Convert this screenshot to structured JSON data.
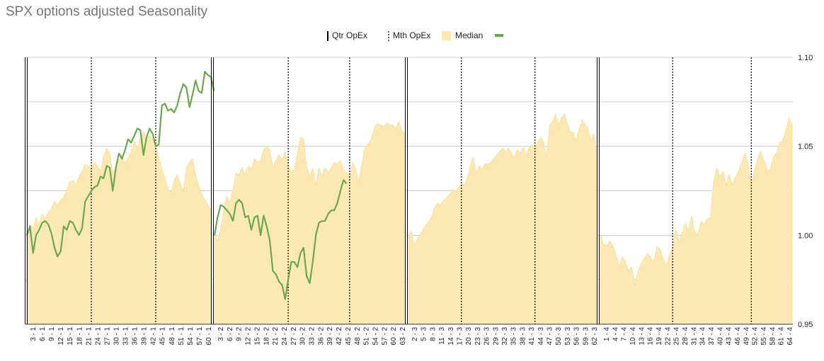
{
  "chart_data": {
    "type": "area",
    "title": "SPX options adjusted Seasonality",
    "legend": [
      {
        "label": "Qtr OpEx",
        "marker": "solid vertical line",
        "color": "#000000"
      },
      {
        "label": "Mth OpEx",
        "marker": "dotted vertical line",
        "color": "#000000"
      },
      {
        "label": "Median",
        "marker": "filled area",
        "color": "#fce8b2"
      },
      {
        "label": "",
        "marker": "line",
        "color": "#6aa84f"
      }
    ],
    "legend_position": "top",
    "colors": {
      "median_fill": "#fce8b2",
      "median_edge": "#fbdc8e",
      "line": "#6aa84f",
      "grid": "#cccccc",
      "title": "#757575"
    },
    "ylim": [
      0.95,
      1.1
    ],
    "y_ticks": [
      "0.95",
      "1.00",
      "1.05",
      "1.10"
    ],
    "y_axis_side": "right",
    "grid": true,
    "panels": [
      {
        "quarter": 1,
        "x_labels": [
          "3 - 1",
          "6 - 1",
          "9 - 1",
          "12 - 1",
          "15 - 1",
          "18 - 1",
          "21 - 1",
          "24 - 1",
          "27 - 1",
          "30 - 1",
          "33 - 1",
          "36 - 1",
          "39 - 1",
          "42 - 1",
          "45 - 1",
          "48 - 1",
          "51 - 1",
          "54 - 1",
          "57 - 1",
          "60 - 1"
        ],
        "mth_opex_after_day": [
          21,
          42
        ],
        "median": [
          1.0,
          1.006,
          1.004,
          1.01,
          1.006,
          1.012,
          1.009,
          1.013,
          1.015,
          1.019,
          1.017,
          1.02,
          1.021,
          1.026,
          1.03,
          1.031,
          1.028,
          1.033,
          1.036,
          1.04,
          1.039,
          1.037,
          1.041,
          1.039,
          1.036,
          1.044,
          1.049,
          1.046,
          1.034,
          1.039,
          1.042,
          1.045,
          1.04,
          1.044,
          1.047,
          1.053,
          1.049,
          1.055,
          1.058,
          1.053,
          1.056,
          1.054,
          1.05,
          1.044,
          1.037,
          1.032,
          1.026,
          1.024,
          1.031,
          1.034,
          1.029,
          1.025,
          1.038,
          1.041,
          1.043,
          1.034,
          1.028,
          1.023,
          1.02,
          1.017,
          1.014
        ],
        "line": [
          1.0,
          1.005,
          0.99,
          1.0,
          1.003,
          1.007,
          1.008,
          1.006,
          1.001,
          0.993,
          0.988,
          0.991,
          1.005,
          1.003,
          1.008,
          1.007,
          1.003,
          1.0,
          1.004,
          1.019,
          1.022,
          1.025,
          1.027,
          1.028,
          1.033,
          1.032,
          1.039,
          1.038,
          1.025,
          1.038,
          1.046,
          1.043,
          1.048,
          1.054,
          1.052,
          1.056,
          1.06,
          1.059,
          1.045,
          1.055,
          1.06,
          1.057,
          1.05,
          1.051,
          1.073,
          1.074,
          1.07,
          1.071,
          1.069,
          1.073,
          1.08,
          1.085,
          1.083,
          1.072,
          1.079,
          1.087,
          1.081,
          1.08,
          1.092,
          1.09,
          1.089,
          1.081
        ]
      },
      {
        "quarter": 2,
        "x_labels": [
          "3 - 2",
          "6 - 2",
          "9 - 2",
          "12 - 2",
          "15 - 2",
          "18 - 2",
          "21 - 2",
          "24 - 2",
          "27 - 2",
          "30 - 2",
          "33 - 2",
          "36 - 2",
          "39 - 2",
          "42 - 2",
          "45 - 2",
          "48 - 2",
          "51 - 2",
          "54 - 2",
          "57 - 2",
          "60 - 2",
          "63 - 2"
        ],
        "mth_opex_after_day": [
          24,
          44
        ],
        "median": [
          1.0,
          0.997,
          1.004,
          1.014,
          1.022,
          1.018,
          1.026,
          1.035,
          1.034,
          1.038,
          1.034,
          1.039,
          1.037,
          1.043,
          1.041,
          1.042,
          1.048,
          1.05,
          1.048,
          1.038,
          1.042,
          1.045,
          1.042,
          1.047,
          1.04,
          1.035,
          1.037,
          1.046,
          1.055,
          1.054,
          1.038,
          1.033,
          1.038,
          1.028,
          1.038,
          1.033,
          1.038,
          1.035,
          1.038,
          1.041,
          1.04,
          1.042,
          1.037,
          1.035,
          1.033,
          1.041,
          1.037,
          1.03,
          1.04,
          1.05,
          1.051,
          1.054,
          1.06,
          1.063,
          1.062,
          1.061,
          1.063,
          1.062,
          1.062,
          1.06,
          1.064,
          1.059,
          1.057
        ],
        "line": [
          1.0,
          1.01,
          1.017,
          1.016,
          1.014,
          1.012,
          1.008,
          1.018,
          1.02,
          1.018,
          1.01,
          1.011,
          1.003,
          1.01,
          1.011,
          1.0,
          1.011,
          1.005,
          0.997,
          0.98,
          0.978,
          0.974,
          0.972,
          0.964,
          0.975,
          0.985,
          0.985,
          0.982,
          0.99,
          0.993,
          0.977,
          0.973,
          0.985,
          1.0,
          1.007,
          1.008,
          1.008,
          1.012,
          1.014,
          1.014,
          1.018,
          1.025,
          1.031,
          1.029
        ]
      },
      {
        "quarter": 3,
        "x_labels": [
          "2 - 3",
          "5 - 3",
          "8 - 3",
          "11 - 3",
          "14 - 3",
          "17 - 3",
          "20 - 3",
          "23 - 3",
          "26 - 3",
          "29 - 3",
          "32 - 3",
          "35 - 3",
          "38 - 3",
          "41 - 3",
          "44 - 3",
          "47 - 3",
          "50 - 3",
          "53 - 3",
          "56 - 3",
          "59 - 3",
          "62 - 3"
        ],
        "mth_opex_after_day": [
          18,
          43
        ],
        "median": [
          1.0,
          1.002,
          0.994,
          0.998,
          1.0,
          1.004,
          1.006,
          1.008,
          1.011,
          1.016,
          1.018,
          1.017,
          1.02,
          1.021,
          1.023,
          1.026,
          1.024,
          1.027,
          1.029,
          1.028,
          1.032,
          1.039,
          1.044,
          1.035,
          1.039,
          1.037,
          1.04,
          1.04,
          1.041,
          1.043,
          1.045,
          1.047,
          1.049,
          1.047,
          1.049,
          1.046,
          1.044,
          1.048,
          1.046,
          1.05,
          1.045,
          1.049,
          1.051,
          1.049,
          1.053,
          1.055,
          1.052,
          1.044,
          1.062,
          1.064,
          1.068,
          1.062,
          1.066,
          1.068,
          1.063,
          1.058,
          1.058,
          1.053,
          1.06,
          1.065,
          1.062,
          1.06,
          1.053,
          1.057,
          1.047
        ],
        "line": []
      },
      {
        "quarter": 4,
        "x_labels": [
          "1 - 4",
          "4 - 4",
          "7 - 4",
          "10 - 4",
          "13 - 4",
          "16 - 4",
          "19 - 4",
          "22 - 4",
          "25 - 4",
          "28 - 4",
          "31 - 4",
          "34 - 4",
          "37 - 4",
          "40 - 4",
          "43 - 4",
          "46 - 4",
          "49 - 4",
          "52 - 4",
          "55 - 4",
          "58 - 4",
          "61 - 4",
          "64 - 4"
        ],
        "mth_opex_after_day": [
          23,
          48
        ],
        "median": [
          1.0,
          0.995,
          0.994,
          0.997,
          0.994,
          0.989,
          0.982,
          0.988,
          0.985,
          0.98,
          0.982,
          0.972,
          0.98,
          0.984,
          0.987,
          0.99,
          0.988,
          0.985,
          0.994,
          0.992,
          0.987,
          0.983,
          0.989,
          0.993,
          1.004,
          0.996,
          1.001,
          1.007,
          1.002,
          1.011,
          1.002,
          1.0,
          1.008,
          1.006,
          1.009,
          1.01,
          1.03,
          1.038,
          1.033,
          1.036,
          1.028,
          1.034,
          1.028,
          1.033,
          1.036,
          1.041,
          1.046,
          1.04,
          1.029,
          1.036,
          1.043,
          1.047,
          1.042,
          1.037,
          1.036,
          1.044,
          1.046,
          1.052,
          1.053,
          1.059,
          1.066,
          1.062
        ],
        "line": []
      }
    ]
  }
}
